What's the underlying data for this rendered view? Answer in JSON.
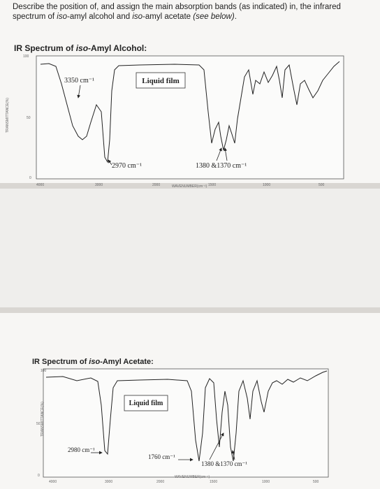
{
  "question": [
    "Describe the position of, and assign the main absorption bands (as indicated) in, the infrared spectrum of ",
    "iso",
    "-amyl alcohol and ",
    "iso",
    "-amyl acetate ",
    "(see below)",
    "."
  ],
  "spectra": [
    {
      "title": [
        "IR Spectrum of ",
        "iso",
        "-Amyl Alcohol:"
      ],
      "sample_label": "Liquid film",
      "bands": [
        "3350 cm⁻¹",
        "2970 cm⁻¹",
        "1380 &1370 cm⁻¹"
      ],
      "y_label": "TRANSMITTANCE(%)",
      "y_ticks": [
        "100",
        "50",
        "0"
      ],
      "x_label": "WAVENUMBER(cm⁻¹)",
      "x_ticks": [
        "4000",
        "3000",
        "2000",
        "1500",
        "1000",
        "500"
      ]
    },
    {
      "title": [
        "IR Spectrum of ",
        "iso",
        "-Amyl Acetate:"
      ],
      "sample_label": "Liquid film",
      "bands": [
        "2980 cm⁻¹",
        "1760 cm⁻¹",
        "1380 &1370 cm⁻¹"
      ],
      "y_label": "TRANSMITTANCE(%)",
      "y_ticks": [
        "100",
        "50",
        "0"
      ],
      "x_label": "WAVENUMBER(cm⁻¹)",
      "x_ticks": [
        "4000",
        "3000",
        "2000",
        "1500",
        "1000",
        "500"
      ]
    }
  ]
}
